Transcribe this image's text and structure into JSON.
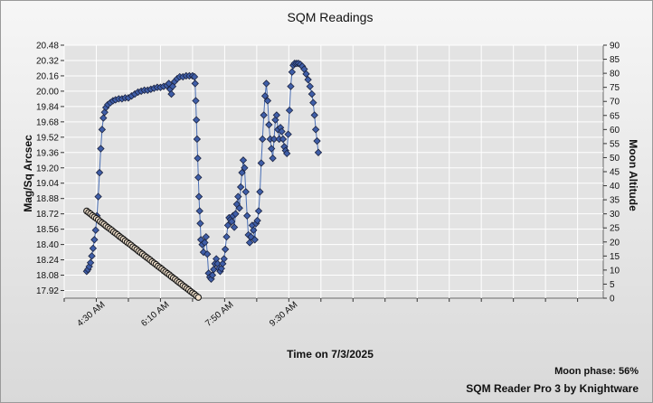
{
  "chart_data": {
    "type": "scatter",
    "title": "SQM Readings",
    "xlabel": "Time on 7/3/2025",
    "ylabel": "Mag/Sq Arcsec",
    "y2label": "Moon Altitude",
    "x_ticks": [
      "4:30 AM",
      "6:10 AM",
      "7:50 AM",
      "9:30 AM"
    ],
    "x_range_min": [
      210,
      1050
    ],
    "y_ticks": [
      "20.48",
      "20.32",
      "20.16",
      "20.00",
      "19.84",
      "19.68",
      "19.52",
      "19.36",
      "19.20",
      "19.04",
      "18.88",
      "18.72",
      "18.56",
      "18.40",
      "18.24",
      "18.08",
      "17.92"
    ],
    "ylim": [
      17.84,
      20.48
    ],
    "y2_ticks": [
      "90",
      "85",
      "80",
      "75",
      "70",
      "65",
      "60",
      "55",
      "50",
      "45",
      "40",
      "35",
      "30",
      "25",
      "20",
      "15",
      "10",
      "5",
      "0"
    ],
    "y2lim": [
      0,
      90
    ],
    "grid": true,
    "series": [
      {
        "role": "sqm",
        "axis": "left",
        "color": "#3f5ea8",
        "points": [
          [
            245,
            18.12
          ],
          [
            247,
            18.14
          ],
          [
            249,
            18.17
          ],
          [
            251,
            18.21
          ],
          [
            253,
            18.28
          ],
          [
            255,
            18.36
          ],
          [
            257,
            18.45
          ],
          [
            259,
            18.55
          ],
          [
            261,
            18.7
          ],
          [
            263,
            18.9
          ],
          [
            265,
            19.15
          ],
          [
            267,
            19.4
          ],
          [
            269,
            19.6
          ],
          [
            271,
            19.72
          ],
          [
            273,
            19.78
          ],
          [
            275,
            19.83
          ],
          [
            278,
            19.86
          ],
          [
            282,
            19.88
          ],
          [
            286,
            19.9
          ],
          [
            290,
            19.91
          ],
          [
            295,
            19.92
          ],
          [
            300,
            19.92
          ],
          [
            305,
            19.93
          ],
          [
            310,
            19.93
          ],
          [
            315,
            19.95
          ],
          [
            320,
            19.97
          ],
          [
            325,
            19.99
          ],
          [
            330,
            20.0
          ],
          [
            335,
            20.01
          ],
          [
            340,
            20.01
          ],
          [
            345,
            20.02
          ],
          [
            350,
            20.03
          ],
          [
            355,
            20.04
          ],
          [
            360,
            20.04
          ],
          [
            365,
            20.05
          ],
          [
            370,
            20.06
          ],
          [
            373,
            20.08
          ],
          [
            375,
            20.02
          ],
          [
            377,
            19.97
          ],
          [
            379,
            20.05
          ],
          [
            382,
            20.1
          ],
          [
            386,
            20.13
          ],
          [
            390,
            20.15
          ],
          [
            395,
            20.15
          ],
          [
            400,
            20.16
          ],
          [
            405,
            20.16
          ],
          [
            410,
            20.16
          ],
          [
            413,
            20.15
          ],
          [
            414,
            20.08
          ],
          [
            415,
            19.9
          ],
          [
            416,
            19.7
          ],
          [
            417,
            19.5
          ],
          [
            418,
            19.3
          ],
          [
            419,
            19.1
          ],
          [
            420,
            18.9
          ],
          [
            421,
            18.75
          ],
          [
            422,
            18.62
          ],
          [
            423,
            18.45
          ],
          [
            425,
            18.4
          ],
          [
            427,
            18.32
          ],
          [
            429,
            18.42
          ],
          [
            431,
            18.48
          ],
          [
            433,
            18.3
          ],
          [
            435,
            18.1
          ],
          [
            437,
            18.06
          ],
          [
            439,
            18.04
          ],
          [
            441,
            18.08
          ],
          [
            443,
            18.14
          ],
          [
            445,
            18.2
          ],
          [
            447,
            18.25
          ],
          [
            449,
            18.2
          ],
          [
            451,
            18.15
          ],
          [
            453,
            18.12
          ],
          [
            455,
            18.15
          ],
          [
            457,
            18.2
          ],
          [
            459,
            18.25
          ],
          [
            461,
            18.35
          ],
          [
            463,
            18.48
          ],
          [
            465,
            18.6
          ],
          [
            467,
            18.68
          ],
          [
            469,
            18.66
          ],
          [
            471,
            18.64
          ],
          [
            473,
            18.7
          ],
          [
            475,
            18.58
          ],
          [
            477,
            18.72
          ],
          [
            479,
            18.82
          ],
          [
            481,
            18.9
          ],
          [
            483,
            18.78
          ],
          [
            485,
            19.0
          ],
          [
            487,
            19.15
          ],
          [
            489,
            19.28
          ],
          [
            491,
            19.2
          ],
          [
            493,
            18.95
          ],
          [
            495,
            18.7
          ],
          [
            497,
            18.5
          ],
          [
            499,
            18.42
          ],
          [
            501,
            18.48
          ],
          [
            503,
            18.6
          ],
          [
            505,
            18.55
          ],
          [
            507,
            18.45
          ],
          [
            509,
            18.62
          ],
          [
            511,
            18.65
          ],
          [
            513,
            18.75
          ],
          [
            515,
            18.95
          ],
          [
            517,
            19.25
          ],
          [
            519,
            19.5
          ],
          [
            521,
            19.75
          ],
          [
            523,
            19.95
          ],
          [
            525,
            20.08
          ],
          [
            527,
            19.9
          ],
          [
            529,
            19.65
          ],
          [
            531,
            19.5
          ],
          [
            533,
            19.4
          ],
          [
            535,
            19.3
          ],
          [
            537,
            19.5
          ],
          [
            539,
            19.7
          ],
          [
            541,
            19.75
          ],
          [
            543,
            19.6
          ],
          [
            545,
            19.5
          ],
          [
            547,
            19.62
          ],
          [
            549,
            19.58
          ],
          [
            551,
            19.5
          ],
          [
            553,
            19.42
          ],
          [
            555,
            19.38
          ],
          [
            557,
            19.35
          ],
          [
            559,
            19.55
          ],
          [
            561,
            19.8
          ],
          [
            563,
            20.05
          ],
          [
            565,
            20.2
          ],
          [
            567,
            20.27
          ],
          [
            569,
            20.29
          ],
          [
            572,
            20.29
          ],
          [
            575,
            20.29
          ],
          [
            578,
            20.28
          ],
          [
            581,
            20.26
          ],
          [
            584,
            20.23
          ],
          [
            587,
            20.18
          ],
          [
            590,
            20.12
          ],
          [
            593,
            20.05
          ],
          [
            596,
            19.97
          ],
          [
            598,
            19.88
          ],
          [
            600,
            19.75
          ],
          [
            602,
            19.6
          ],
          [
            604,
            19.48
          ],
          [
            606,
            19.36
          ]
        ]
      },
      {
        "role": "moon-altitude",
        "axis": "right",
        "color": "#f3e2cc",
        "stroke": "#1a1a1a",
        "points": [
          [
            245,
            31.0
          ],
          [
            248,
            30.5
          ],
          [
            251,
            30.0
          ],
          [
            254,
            29.4
          ],
          [
            257,
            28.9
          ],
          [
            260,
            28.4
          ],
          [
            263,
            27.9
          ],
          [
            266,
            27.3
          ],
          [
            269,
            26.8
          ],
          [
            272,
            26.3
          ],
          [
            275,
            25.7
          ],
          [
            278,
            25.2
          ],
          [
            281,
            24.7
          ],
          [
            284,
            24.2
          ],
          [
            287,
            23.6
          ],
          [
            290,
            23.1
          ],
          [
            293,
            22.6
          ],
          [
            296,
            22.0
          ],
          [
            299,
            21.5
          ],
          [
            302,
            21.0
          ],
          [
            305,
            20.4
          ],
          [
            308,
            19.9
          ],
          [
            311,
            19.4
          ],
          [
            314,
            18.9
          ],
          [
            317,
            18.3
          ],
          [
            320,
            17.8
          ],
          [
            323,
            17.3
          ],
          [
            326,
            16.7
          ],
          [
            329,
            16.2
          ],
          [
            332,
            15.7
          ],
          [
            335,
            15.1
          ],
          [
            338,
            14.6
          ],
          [
            341,
            14.1
          ],
          [
            344,
            13.6
          ],
          [
            347,
            13.0
          ],
          [
            350,
            12.5
          ],
          [
            353,
            12.0
          ],
          [
            356,
            11.4
          ],
          [
            359,
            10.9
          ],
          [
            362,
            10.4
          ],
          [
            365,
            9.8
          ],
          [
            368,
            9.3
          ],
          [
            371,
            8.8
          ],
          [
            374,
            8.3
          ],
          [
            377,
            7.7
          ],
          [
            380,
            7.2
          ],
          [
            383,
            6.7
          ],
          [
            386,
            6.1
          ],
          [
            389,
            5.6
          ],
          [
            392,
            5.1
          ],
          [
            395,
            4.5
          ],
          [
            398,
            4.0
          ],
          [
            401,
            3.5
          ],
          [
            404,
            3.0
          ],
          [
            407,
            2.4
          ],
          [
            410,
            1.9
          ],
          [
            413,
            1.4
          ],
          [
            416,
            0.8
          ],
          [
            419,
            0.3
          ]
        ]
      }
    ],
    "moon_phase": "Moon phase: 56%"
  },
  "footer": {
    "brand": "SQM Reader Pro 3 by Knightware"
  }
}
